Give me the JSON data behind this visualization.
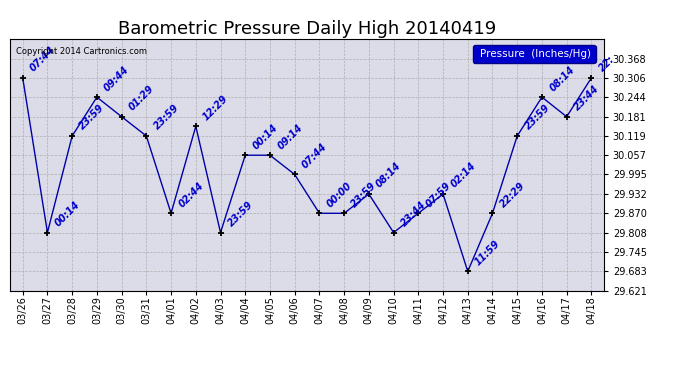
{
  "title": "Barometric Pressure Daily High 20140419",
  "copyright": "Copyright 2014 Cartronics.com",
  "legend_label": "Pressure  (Inches/Hg)",
  "x_labels": [
    "03/26",
    "03/27",
    "03/28",
    "03/29",
    "03/30",
    "03/31",
    "04/01",
    "04/02",
    "04/03",
    "04/04",
    "04/05",
    "04/06",
    "04/07",
    "04/08",
    "04/09",
    "04/10",
    "04/11",
    "04/12",
    "04/13",
    "04/14",
    "04/15",
    "04/16",
    "04/17",
    "04/18"
  ],
  "y_values": [
    30.306,
    29.808,
    30.119,
    30.244,
    30.181,
    30.119,
    29.87,
    30.15,
    29.808,
    30.057,
    30.057,
    29.995,
    29.87,
    29.87,
    29.932,
    29.808,
    29.87,
    29.932,
    29.683,
    29.87,
    30.119,
    30.244,
    30.181,
    30.306
  ],
  "annotations": [
    "07:44",
    "00:14",
    "23:59",
    "09:44",
    "01:29",
    "23:59",
    "02:44",
    "12:29",
    "23:59",
    "00:14",
    "09:14",
    "07:44",
    "00:00",
    "23:59",
    "08:14",
    "23:44",
    "07:59",
    "02:14",
    "11:59",
    "22:29",
    "23:59",
    "08:14",
    "23:44",
    "22:"
  ],
  "ylim_min": 29.621,
  "ylim_max": 30.43,
  "yticks": [
    29.621,
    29.683,
    29.745,
    29.808,
    29.87,
    29.932,
    29.995,
    30.057,
    30.119,
    30.181,
    30.244,
    30.306,
    30.368
  ],
  "line_color": "#0000aa",
  "annotation_color": "#0000cc",
  "background_color": "#dcdce8",
  "grid_color": "#aaaaaa",
  "title_fontsize": 13,
  "annotation_fontsize": 7,
  "legend_bg": "#0000cc",
  "legend_fg": "#ffffff"
}
